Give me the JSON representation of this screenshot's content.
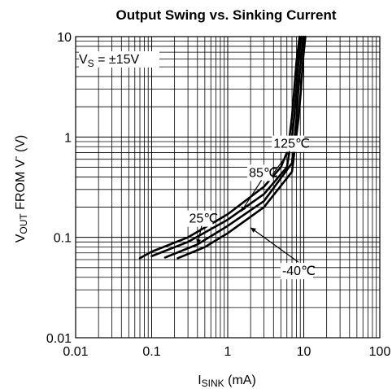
{
  "chart_data": {
    "type": "line",
    "title": "Output Swing vs. Sinking Current",
    "xlabel": {
      "main": "I",
      "sub": "SINK",
      "unit": " (mA)"
    },
    "ylabel": {
      "main": "V",
      "sub": "OUT",
      "rest": " FROM V",
      "sup": "-",
      "unit": " (V)"
    },
    "x_scale": "log",
    "y_scale": "log",
    "xlim": [
      0.01,
      100
    ],
    "ylim": [
      0.01,
      10
    ],
    "grid": true,
    "x_ticks": [
      "0.01",
      "0.1",
      "1",
      "10",
      "100"
    ],
    "y_ticks": [
      "0.01",
      "0.1",
      "1",
      "10"
    ],
    "condition": {
      "main": "V",
      "sub": "S",
      "rest": " = ±15V"
    },
    "series": [
      {
        "name": "125℃",
        "x": [
          0.07,
          0.1,
          0.3,
          1,
          3,
          5,
          6,
          6.5,
          7,
          7.5,
          8,
          8.8
        ],
        "y": [
          0.062,
          0.072,
          0.1,
          0.17,
          0.32,
          0.5,
          0.7,
          1.0,
          1.6,
          3.0,
          5.5,
          10
        ]
      },
      {
        "name": "85℃",
        "x": [
          0.1,
          0.3,
          1,
          3,
          6,
          7,
          7.5,
          8,
          8.5,
          9.3
        ],
        "y": [
          0.065,
          0.09,
          0.15,
          0.27,
          0.5,
          1.0,
          1.6,
          3.0,
          5.5,
          10
        ]
      },
      {
        "name": "25℃",
        "x": [
          0.15,
          0.4,
          1,
          3,
          7,
          8,
          8.5,
          9.2,
          9.9
        ],
        "y": [
          0.063,
          0.085,
          0.13,
          0.23,
          0.55,
          1.5,
          3.0,
          6.0,
          10
        ]
      },
      {
        "name": "-40℃",
        "x": [
          0.22,
          0.5,
          1,
          3,
          7,
          8.5,
          9.2,
          9.8,
          10.5
        ],
        "y": [
          0.062,
          0.08,
          0.11,
          0.2,
          0.45,
          1.5,
          3.0,
          6.0,
          10
        ]
      }
    ],
    "annotations": [
      {
        "text": "125℃",
        "x": 4.0,
        "y": 0.78,
        "target_x": 3.5,
        "target_y": 0.38
      },
      {
        "text": "85℃",
        "x": 1.9,
        "y": 0.4,
        "target_x": 1.5,
        "target_y": 0.18
      },
      {
        "text": "25℃",
        "x": 0.31,
        "y": 0.14,
        "target_x": 0.4,
        "target_y": 0.085
      },
      {
        "text": "-40℃",
        "x": 5.2,
        "y": 0.042,
        "target_x": 2.0,
        "target_y": 0.125
      }
    ],
    "colors": {
      "line": "#000000",
      "grid": "#000000",
      "background": "#ffffff"
    }
  }
}
